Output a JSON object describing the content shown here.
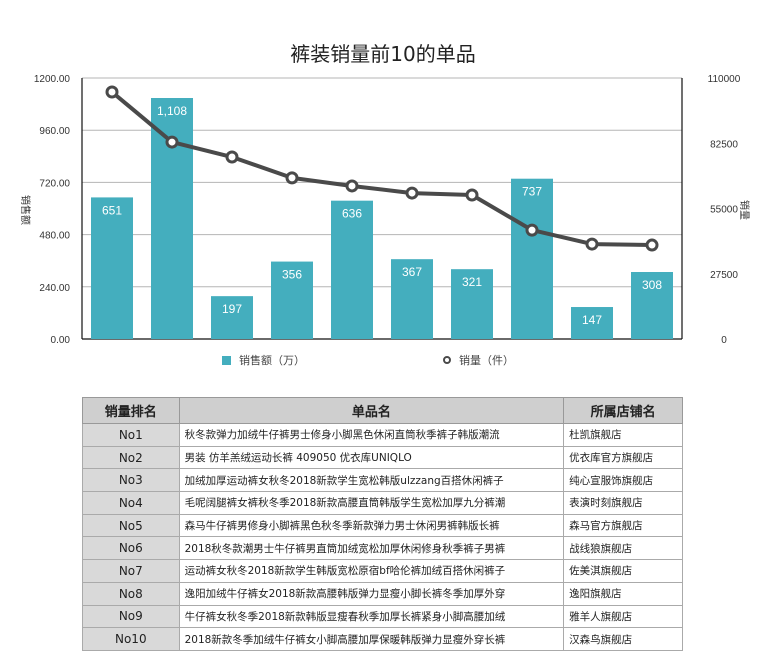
{
  "title": "裤装销量前10的单品",
  "chart_data": {
    "type": "bar+line",
    "title": "裤装销量前10的单品",
    "categories": [
      "No1",
      "No2",
      "No3",
      "No4",
      "No5",
      "No6",
      "No7",
      "No8",
      "No9",
      "No10"
    ],
    "series": [
      {
        "name": "销售额（万）",
        "type": "bar",
        "axis": "left",
        "color": "#44aebe",
        "values": [
          651,
          1108,
          197,
          356,
          636,
          367,
          321,
          737,
          147,
          308
        ]
      },
      {
        "name": "销量（件）",
        "type": "line",
        "axis": "right",
        "color": "#4a4a4a",
        "values": [
          104100,
          83000,
          76700,
          67900,
          64500,
          61500,
          60700,
          45900,
          40000,
          39600
        ]
      }
    ],
    "ylabel_left": "销售额",
    "ylabel_right": "销量",
    "ylim_left": [
      0,
      1200
    ],
    "ylim_right": [
      0,
      110000
    ],
    "yticks_left": [
      "0.00",
      "240.00",
      "480.00",
      "720.00",
      "960.00",
      "1200.00"
    ],
    "yticks_right": [
      "0",
      "27500",
      "55000",
      "82500",
      "110000"
    ],
    "grid": true,
    "legend_position": "bottom"
  },
  "legend": {
    "bar_label": "销售额（万）",
    "line_label": "销量（件）"
  },
  "table": {
    "headers": [
      "销量排名",
      "单品名",
      "所属店铺名"
    ],
    "rows": [
      {
        "rank": "No1",
        "name": "秋冬款弹力加绒牛仔裤男士修身小脚黑色休闲直筒秋季裤子韩版潮流",
        "store": "杜凯旗舰店"
      },
      {
        "rank": "No2",
        "name": "男装 仿羊羔绒运动长裤 409050 优衣库UNIQLO",
        "store": "优衣库官方旗舰店"
      },
      {
        "rank": "No3",
        "name": "加绒加厚运动裤女秋冬2018新款学生宽松韩版ulzzang百搭休闲裤子",
        "store": "纯心宣服饰旗舰店"
      },
      {
        "rank": "No4",
        "name": "毛呢阔腿裤女裤秋冬季2018新款高腰直筒韩版学生宽松加厚九分裤潮",
        "store": "表演时刻旗舰店"
      },
      {
        "rank": "No5",
        "name": "森马牛仔裤男修身小脚裤黑色秋冬季新款弹力男士休闲男裤韩版长裤",
        "store": "森马官方旗舰店"
      },
      {
        "rank": "No6",
        "name": "2018秋冬款潮男士牛仔裤男直筒加绒宽松加厚休闲修身秋季裤子男裤",
        "store": "战线狼旗舰店"
      },
      {
        "rank": "No7",
        "name": "运动裤女秋冬2018新款学生韩版宽松原宿bf哈伦裤加绒百搭休闲裤子",
        "store": "佐美淇旗舰店"
      },
      {
        "rank": "No8",
        "name": "逸阳加绒牛仔裤女2018新款高腰韩版弹力显瘦小脚长裤冬季加厚外穿",
        "store": "逸阳旗舰店"
      },
      {
        "rank": "No9",
        "name": "牛仔裤女秋冬季2018新款韩版显瘦春秋季加厚长裤紧身小脚高腰加绒",
        "store": "雅羊人旗舰店"
      },
      {
        "rank": "No10",
        "name": "2018新款冬季加绒牛仔裤女小脚高腰加厚保暖韩版弹力显瘦外穿长裤",
        "store": "汉森鸟旗舰店"
      }
    ]
  }
}
